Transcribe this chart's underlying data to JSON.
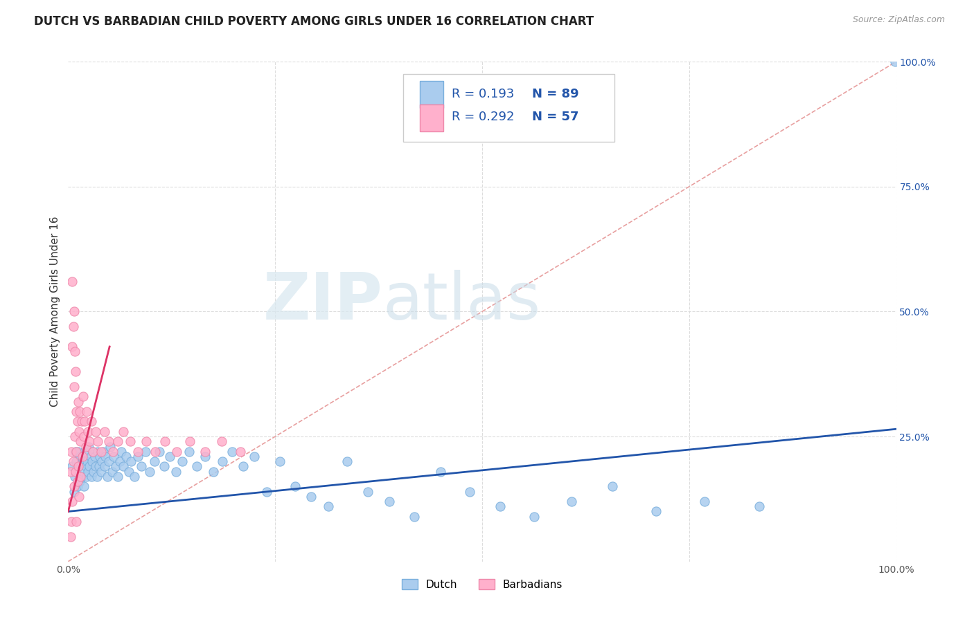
{
  "title": "DUTCH VS BARBADIAN CHILD POVERTY AMONG GIRLS UNDER 16 CORRELATION CHART",
  "source": "Source: ZipAtlas.com",
  "ylabel": "Child Poverty Among Girls Under 16",
  "watermark_zip": "ZIP",
  "watermark_atlas": "atlas",
  "xlim": [
    0,
    1
  ],
  "ylim": [
    0,
    1
  ],
  "ytick_vals_right": [
    0.25,
    0.5,
    0.75,
    1.0
  ],
  "ytick_labels_right": [
    "25.0%",
    "50.0%",
    "75.0%",
    "100.0%"
  ],
  "dutch_color": "#aaccee",
  "barbadian_color": "#ffb0cc",
  "dutch_edge": "#7aafdd",
  "barbadian_edge": "#ee88aa",
  "trend_dutch_color": "#2255aa",
  "trend_barbadian_color": "#dd3366",
  "diagonal_color": "#ddaaaa",
  "legend_dutch_R": "0.193",
  "legend_dutch_N": "89",
  "legend_barb_R": "0.292",
  "legend_barb_N": "57",
  "background_color": "#ffffff",
  "grid_color": "#dddddd",
  "title_fontsize": 12,
  "axis_fontsize": 11,
  "tick_fontsize": 10,
  "legend_fontsize": 13,
  "dutch_x": [
    0.005,
    0.007,
    0.008,
    0.009,
    0.01,
    0.01,
    0.011,
    0.012,
    0.013,
    0.014,
    0.015,
    0.016,
    0.017,
    0.018,
    0.019,
    0.02,
    0.021,
    0.022,
    0.023,
    0.024,
    0.025,
    0.026,
    0.027,
    0.028,
    0.029,
    0.03,
    0.031,
    0.032,
    0.033,
    0.035,
    0.036,
    0.037,
    0.038,
    0.04,
    0.041,
    0.042,
    0.044,
    0.045,
    0.047,
    0.049,
    0.051,
    0.053,
    0.055,
    0.057,
    0.06,
    0.062,
    0.064,
    0.067,
    0.07,
    0.073,
    0.076,
    0.08,
    0.084,
    0.088,
    0.093,
    0.098,
    0.104,
    0.11,
    0.116,
    0.123,
    0.13,
    0.138,
    0.146,
    0.155,
    0.165,
    0.175,
    0.186,
    0.198,
    0.211,
    0.225,
    0.24,
    0.256,
    0.274,
    0.293,
    0.314,
    0.337,
    0.362,
    0.388,
    0.418,
    0.45,
    0.485,
    0.522,
    0.563,
    0.608,
    0.657,
    0.71,
    0.769,
    0.835,
    0.999
  ],
  "dutch_y": [
    0.19,
    0.14,
    0.17,
    0.22,
    0.18,
    0.2,
    0.15,
    0.22,
    0.19,
    0.16,
    0.21,
    0.17,
    0.2,
    0.18,
    0.15,
    0.22,
    0.19,
    0.17,
    0.2,
    0.18,
    0.23,
    0.19,
    0.21,
    0.17,
    0.2,
    0.22,
    0.18,
    0.21,
    0.19,
    0.17,
    0.22,
    0.19,
    0.21,
    0.18,
    0.2,
    0.22,
    0.19,
    0.21,
    0.17,
    0.2,
    0.23,
    0.18,
    0.21,
    0.19,
    0.17,
    0.2,
    0.22,
    0.19,
    0.21,
    0.18,
    0.2,
    0.17,
    0.21,
    0.19,
    0.22,
    0.18,
    0.2,
    0.22,
    0.19,
    0.21,
    0.18,
    0.2,
    0.22,
    0.19,
    0.21,
    0.18,
    0.2,
    0.22,
    0.19,
    0.21,
    0.14,
    0.2,
    0.15,
    0.13,
    0.11,
    0.2,
    0.14,
    0.12,
    0.09,
    0.18,
    0.14,
    0.11,
    0.09,
    0.12,
    0.15,
    0.1,
    0.12,
    0.11,
    1.0
  ],
  "barb_x": [
    0.003,
    0.003,
    0.004,
    0.004,
    0.005,
    0.005,
    0.005,
    0.006,
    0.006,
    0.007,
    0.007,
    0.007,
    0.008,
    0.008,
    0.009,
    0.009,
    0.01,
    0.01,
    0.01,
    0.011,
    0.011,
    0.012,
    0.012,
    0.013,
    0.013,
    0.014,
    0.015,
    0.015,
    0.016,
    0.017,
    0.018,
    0.019,
    0.02,
    0.021,
    0.022,
    0.024,
    0.026,
    0.028,
    0.03,
    0.033,
    0.036,
    0.04,
    0.044,
    0.049,
    0.054,
    0.06,
    0.067,
    0.075,
    0.084,
    0.094,
    0.105,
    0.117,
    0.131,
    0.147,
    0.165,
    0.185,
    0.208
  ],
  "barb_y": [
    0.18,
    0.05,
    0.22,
    0.08,
    0.56,
    0.43,
    0.12,
    0.47,
    0.2,
    0.5,
    0.35,
    0.15,
    0.42,
    0.25,
    0.38,
    0.18,
    0.3,
    0.22,
    0.08,
    0.28,
    0.16,
    0.32,
    0.19,
    0.26,
    0.13,
    0.3,
    0.24,
    0.17,
    0.28,
    0.21,
    0.33,
    0.25,
    0.28,
    0.23,
    0.3,
    0.26,
    0.24,
    0.28,
    0.22,
    0.26,
    0.24,
    0.22,
    0.26,
    0.24,
    0.22,
    0.24,
    0.26,
    0.24,
    0.22,
    0.24,
    0.22,
    0.24,
    0.22,
    0.24,
    0.22,
    0.24,
    0.22
  ]
}
